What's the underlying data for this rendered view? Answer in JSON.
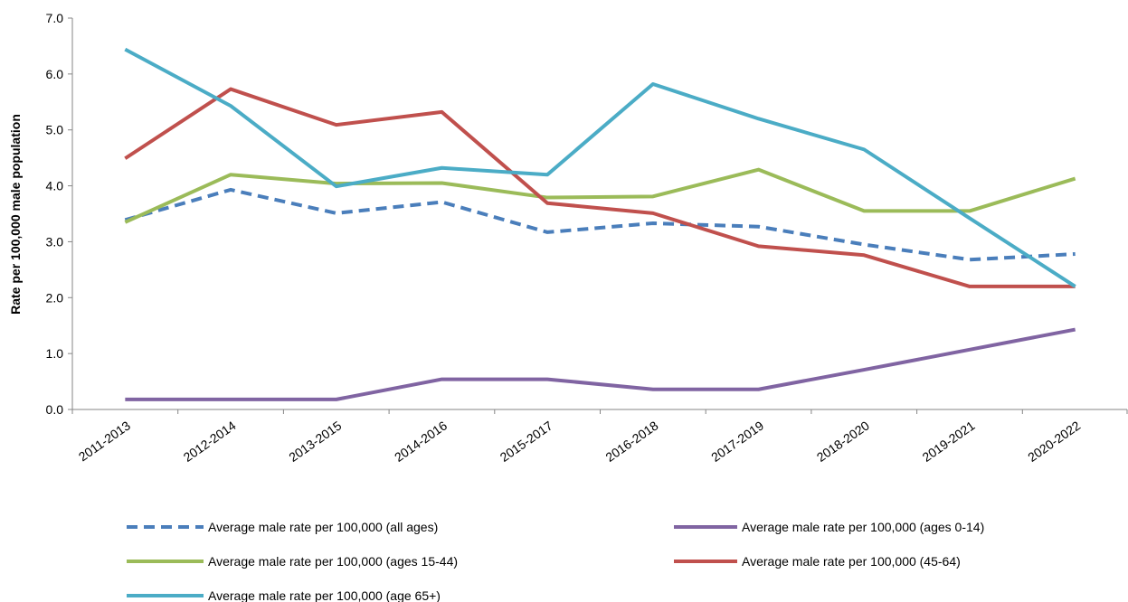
{
  "chart_data": {
    "type": "line",
    "y_label": "Rate per 100,000 male population",
    "categories": [
      "2011-2013",
      "2012-2014",
      "2013-2015",
      "2014-2016",
      "2015-2017",
      "2016-2018",
      "2017-2019",
      "2018-2020",
      "2019-2021",
      "2020-2022"
    ],
    "ylim": [
      0,
      7
    ],
    "yticks": [
      {
        "value": 0,
        "label": "0.0"
      },
      {
        "value": 1,
        "label": "1.0"
      },
      {
        "value": 2,
        "label": "2.0"
      },
      {
        "value": 3,
        "label": "3.0"
      },
      {
        "value": 4,
        "label": "4.0"
      },
      {
        "value": 5,
        "label": "5.0"
      },
      {
        "value": 6,
        "label": "6.0"
      },
      {
        "value": 7,
        "label": "7.0"
      }
    ],
    "grid": false,
    "legend": "bottom",
    "series": [
      {
        "name": "Average male rate per 100,000 (all ages)",
        "color": "#4a7ebb",
        "dash": true,
        "values": [
          3.39,
          3.93,
          3.51,
          3.71,
          3.17,
          3.33,
          3.27,
          2.95,
          2.68,
          2.78
        ]
      },
      {
        "name": "Average male rate per 100,000 (ages 0-14)",
        "color": "#8064a2",
        "dash": false,
        "values": [
          0.18,
          0.18,
          0.18,
          0.54,
          0.54,
          0.36,
          0.36,
          0.71,
          1.07,
          1.43
        ]
      },
      {
        "name": "Average male rate per 100,000 (ages 15-44)",
        "color": "#9bbb59",
        "dash": false,
        "values": [
          3.35,
          4.2,
          4.04,
          4.05,
          3.79,
          3.81,
          4.29,
          3.55,
          3.55,
          4.13
        ]
      },
      {
        "name": "Average male rate per 100,000 (45-64)",
        "color": "#c0504d",
        "dash": false,
        "values": [
          4.49,
          5.73,
          5.09,
          5.32,
          3.69,
          3.51,
          2.92,
          2.76,
          2.2,
          2.2
        ]
      },
      {
        "name": "Average male rate per 100,000 (age 65+)",
        "color": "#4bacc6",
        "dash": false,
        "values": [
          6.44,
          5.43,
          3.99,
          4.32,
          4.2,
          5.82,
          5.2,
          4.65,
          3.42,
          2.2
        ]
      }
    ]
  }
}
